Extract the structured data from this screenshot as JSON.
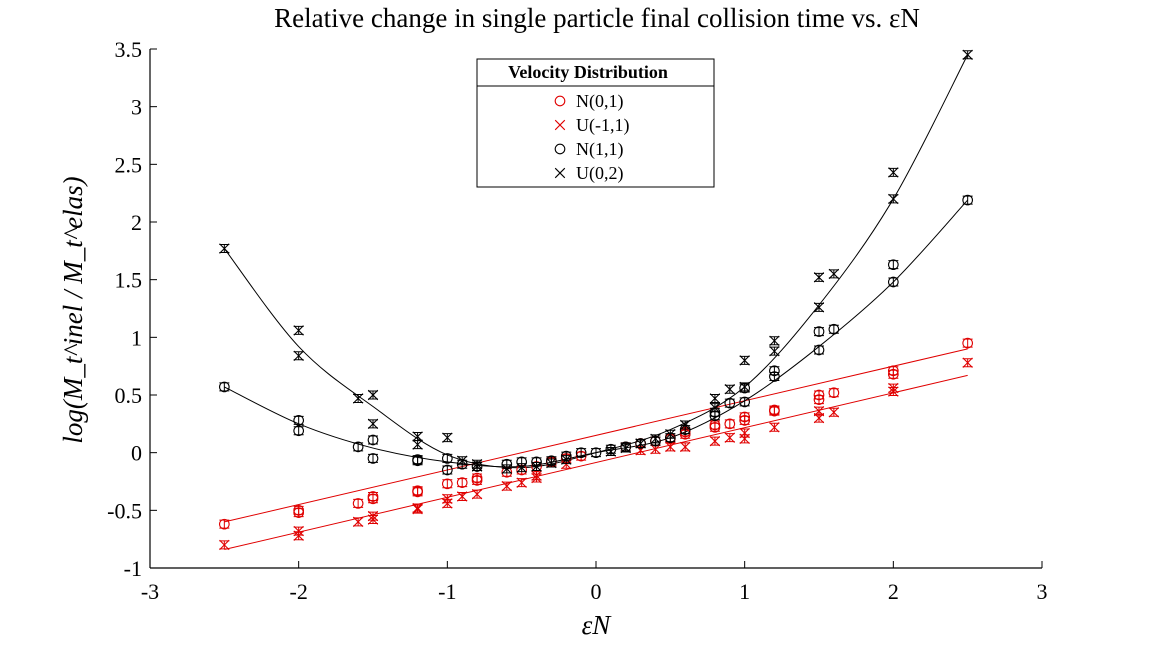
{
  "chart_data": {
    "type": "scatter",
    "title": "Relative change in single particle final collision time vs. εN",
    "xlabel": "εN",
    "ylabel": "log(M_t^inel / M_t^elas)",
    "xlim": [
      -3,
      3
    ],
    "ylim": [
      -1,
      3.5
    ],
    "xticks": [
      "-3",
      "-2",
      "-1",
      "0",
      "1",
      "2",
      "3"
    ],
    "yticks": [
      "-1",
      "-0.5",
      "0",
      "0.5",
      "1",
      "1.5",
      "2",
      "2.5",
      "3",
      "3.5"
    ],
    "grid": false,
    "legend_title": "Velocity Distribution",
    "legend_position": "top-center",
    "series": [
      {
        "name": "N(0,1)",
        "marker": "circle",
        "color": "#e00000",
        "points": [
          [
            -2.5,
            -0.62
          ],
          [
            -2,
            -0.52
          ],
          [
            -2,
            -0.5
          ],
          [
            -1.6,
            -0.44
          ],
          [
            -1.5,
            -0.4
          ],
          [
            -1.5,
            -0.38
          ],
          [
            -1.2,
            -0.34
          ],
          [
            -1.2,
            -0.33
          ],
          [
            -1,
            -0.27
          ],
          [
            -0.9,
            -0.26
          ],
          [
            -0.8,
            -0.24
          ],
          [
            -0.8,
            -0.22
          ],
          [
            -0.6,
            -0.17
          ],
          [
            -0.5,
            -0.15
          ],
          [
            -0.4,
            -0.12
          ],
          [
            -0.3,
            -0.08
          ],
          [
            -0.2,
            -0.05
          ],
          [
            -0.1,
            -0.03
          ],
          [
            0.2,
            0.05
          ],
          [
            0.3,
            0.08
          ],
          [
            0.4,
            0.1
          ],
          [
            0.5,
            0.12
          ],
          [
            0.6,
            0.16
          ],
          [
            0.6,
            0.18
          ],
          [
            0.8,
            0.22
          ],
          [
            0.8,
            0.24
          ],
          [
            0.9,
            0.25
          ],
          [
            1,
            0.28
          ],
          [
            1,
            0.31
          ],
          [
            1.2,
            0.36
          ],
          [
            1.2,
            0.37
          ],
          [
            1.5,
            0.46
          ],
          [
            1.5,
            0.5
          ],
          [
            1.6,
            0.52
          ],
          [
            2,
            0.68
          ],
          [
            2,
            0.71
          ],
          [
            2.5,
            0.95
          ]
        ],
        "fit": [
          [
            -2.5,
            -0.6
          ],
          [
            2.5,
            0.9
          ]
        ]
      },
      {
        "name": "U(-1,1)",
        "marker": "cross",
        "color": "#e00000",
        "points": [
          [
            -2.5,
            -0.8
          ],
          [
            -2,
            -0.72
          ],
          [
            -2,
            -0.68
          ],
          [
            -1.6,
            -0.6
          ],
          [
            -1.5,
            -0.58
          ],
          [
            -1.5,
            -0.55
          ],
          [
            -1.2,
            -0.49
          ],
          [
            -1.2,
            -0.48
          ],
          [
            -1,
            -0.44
          ],
          [
            -1,
            -0.4
          ],
          [
            -0.9,
            -0.38
          ],
          [
            -0.8,
            -0.36
          ],
          [
            -0.6,
            -0.29
          ],
          [
            -0.5,
            -0.26
          ],
          [
            -0.4,
            -0.22
          ],
          [
            -0.4,
            -0.2
          ],
          [
            -0.2,
            -0.1
          ],
          [
            0.3,
            0.02
          ],
          [
            0.4,
            0.03
          ],
          [
            0.5,
            0.05
          ],
          [
            0.6,
            0.05
          ],
          [
            0.8,
            0.1
          ],
          [
            0.9,
            0.13
          ],
          [
            1,
            0.12
          ],
          [
            1,
            0.17
          ],
          [
            1.2,
            0.22
          ],
          [
            1.5,
            0.3
          ],
          [
            1.5,
            0.36
          ],
          [
            1.6,
            0.35
          ],
          [
            2,
            0.53
          ],
          [
            2,
            0.56
          ],
          [
            2.5,
            0.78
          ]
        ],
        "fit": [
          [
            -2.5,
            -0.84
          ],
          [
            2.5,
            0.67
          ]
        ]
      },
      {
        "name": "N(1,1)",
        "marker": "circle",
        "color": "#000000",
        "points": [
          [
            -2.5,
            0.57
          ],
          [
            -2,
            0.28
          ],
          [
            -2,
            0.19
          ],
          [
            -1.6,
            0.05
          ],
          [
            -1.5,
            0.11
          ],
          [
            -1.5,
            -0.05
          ],
          [
            -1.2,
            -0.06
          ],
          [
            -1.2,
            -0.07
          ],
          [
            -1,
            -0.05
          ],
          [
            -1,
            -0.15
          ],
          [
            -0.9,
            -0.1
          ],
          [
            -0.8,
            -0.12
          ],
          [
            -0.6,
            -0.1
          ],
          [
            -0.5,
            -0.08
          ],
          [
            -0.4,
            -0.08
          ],
          [
            -0.3,
            -0.07
          ],
          [
            -0.2,
            -0.03
          ],
          [
            -0.1,
            0
          ],
          [
            0,
            0
          ],
          [
            0.1,
            0.03
          ],
          [
            0.2,
            0.05
          ],
          [
            0.3,
            0.08
          ],
          [
            0.4,
            0.1
          ],
          [
            0.5,
            0.13
          ],
          [
            0.6,
            0.2
          ],
          [
            0.8,
            0.32
          ],
          [
            0.8,
            0.35
          ],
          [
            0.9,
            0.43
          ],
          [
            1,
            0.44
          ],
          [
            1,
            0.56
          ],
          [
            1.2,
            0.66
          ],
          [
            1.2,
            0.71
          ],
          [
            1.5,
            0.89
          ],
          [
            1.5,
            1.05
          ],
          [
            1.6,
            1.07
          ],
          [
            2,
            1.48
          ],
          [
            2,
            1.63
          ],
          [
            2.5,
            2.19
          ]
        ],
        "fit": [
          [
            -2.5,
            0.57
          ],
          [
            -2,
            0.25
          ],
          [
            -1.5,
            0.04
          ],
          [
            -1,
            -0.08
          ],
          [
            -0.5,
            -0.12
          ],
          [
            0,
            0
          ],
          [
            0.5,
            0.13
          ],
          [
            1,
            0.45
          ],
          [
            1.5,
            0.92
          ],
          [
            2,
            1.48
          ],
          [
            2.5,
            2.19
          ]
        ]
      },
      {
        "name": "U(0,2)",
        "marker": "cross",
        "color": "#000000",
        "points": [
          [
            -2.5,
            1.77
          ],
          [
            -2,
            1.06
          ],
          [
            -2,
            0.84
          ],
          [
            -1.6,
            0.47
          ],
          [
            -1.5,
            0.5
          ],
          [
            -1.5,
            0.25
          ],
          [
            -1.2,
            0.14
          ],
          [
            -1.2,
            0.07
          ],
          [
            -1,
            0.13
          ],
          [
            -0.9,
            -0.07
          ],
          [
            -0.8,
            -0.1
          ],
          [
            -0.8,
            -0.12
          ],
          [
            -0.6,
            -0.14
          ],
          [
            -0.5,
            -0.13
          ],
          [
            -0.4,
            -0.12
          ],
          [
            -0.3,
            -0.09
          ],
          [
            -0.2,
            -0.06
          ],
          [
            0.1,
            0.01
          ],
          [
            0.2,
            0.04
          ],
          [
            0.3,
            0.08
          ],
          [
            0.4,
            0.12
          ],
          [
            0.5,
            0.16
          ],
          [
            0.6,
            0.24
          ],
          [
            0.8,
            0.39
          ],
          [
            0.8,
            0.47
          ],
          [
            0.9,
            0.55
          ],
          [
            1,
            0.57
          ],
          [
            1,
            0.8
          ],
          [
            1.2,
            0.88
          ],
          [
            1.2,
            0.97
          ],
          [
            1.5,
            1.26
          ],
          [
            1.5,
            1.52
          ],
          [
            1.6,
            1.55
          ],
          [
            2,
            2.2
          ],
          [
            2,
            2.43
          ],
          [
            2.5,
            3.45
          ]
        ],
        "fit": [
          [
            -2.5,
            1.77
          ],
          [
            -2,
            0.92
          ],
          [
            -1.5,
            0.4
          ],
          [
            -1,
            -0.02
          ],
          [
            -0.5,
            -0.13
          ],
          [
            0,
            0
          ],
          [
            0.5,
            0.2
          ],
          [
            1,
            0.57
          ],
          [
            1.5,
            1.28
          ],
          [
            2,
            2.2
          ],
          [
            2.5,
            3.45
          ]
        ]
      }
    ]
  }
}
